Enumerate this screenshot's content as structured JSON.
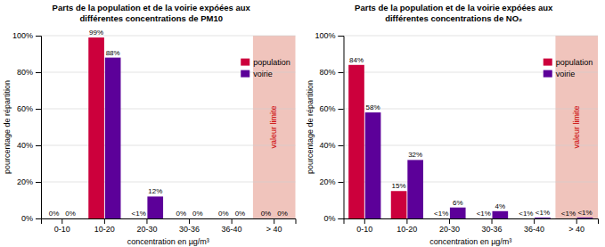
{
  "chart_data": [
    {
      "type": "bar",
      "title": "Parts de la population et de la voirie expóées aux\ndifférentes concentrations de PM10",
      "categories": [
        "0-10",
        "10-20",
        "20-30",
        "30-36",
        "36-40",
        "> 40"
      ],
      "series": [
        {
          "name": "population",
          "color": "#cc003c",
          "values": [
            0,
            99,
            0,
            0,
            0,
            0
          ],
          "value_labels": [
            "0%",
            "99%",
            "<1%",
            "0%",
            "0%",
            "0%"
          ]
        },
        {
          "name": "voirie",
          "color": "#5c0099",
          "values": [
            0,
            88,
            12,
            0,
            0,
            0
          ],
          "value_labels": [
            "0%",
            "88%",
            "12%",
            "0%",
            "0%",
            "0%"
          ]
        }
      ],
      "xlabel": "concentration en µg/m³",
      "ylabel": "pourcentage de répartition",
      "ylim": [
        0,
        100
      ],
      "yticks": [
        {
          "value": 0,
          "label": "0%"
        },
        {
          "value": 20,
          "label": "20%"
        },
        {
          "value": 40,
          "label": "40%"
        },
        {
          "value": 60,
          "label": "60%"
        },
        {
          "value": 80,
          "label": "80%"
        },
        {
          "value": 100,
          "label": "100%"
        }
      ],
      "annotations": [
        {
          "text": "valeur limite",
          "color": "#cc0000"
        }
      ],
      "grid": true,
      "legend": "upper right",
      "data_labels": true
    },
    {
      "type": "bar",
      "title": "Parts de la population et de la voirie expóées aux\ndifférentes concentrations de NO₂",
      "categories": [
        "0-10",
        "10-20",
        "20-30",
        "30-36",
        "36-40",
        "> 40"
      ],
      "series": [
        {
          "name": "population",
          "color": "#cc003c",
          "values": [
            84,
            15,
            0,
            0,
            0,
            0
          ],
          "value_labels": [
            "84%",
            "15%",
            "<1%",
            "<1%",
            "<1%",
            "<1%"
          ]
        },
        {
          "name": "voirie",
          "color": "#5c0099",
          "values": [
            58,
            32,
            6,
            4,
            0.5,
            0.5
          ],
          "value_labels": [
            "58%",
            "32%",
            "6%",
            "4%",
            "<1%",
            "<1%"
          ]
        }
      ],
      "xlabel": "concentration en µg/m³",
      "ylabel": "pourcentage de répartition",
      "ylim": [
        0,
        100
      ],
      "yticks": [
        {
          "value": 0,
          "label": "0%"
        },
        {
          "value": 20,
          "label": "20%"
        },
        {
          "value": 40,
          "label": "40%"
        },
        {
          "value": 60,
          "label": "60%"
        },
        {
          "value": 80,
          "label": "80%"
        },
        {
          "value": 100,
          "label": "100%"
        }
      ],
      "annotations": [
        {
          "text": "valeur limite",
          "color": "#cc0000"
        }
      ],
      "grid": true,
      "legend": "upper right",
      "data_labels": true
    }
  ]
}
